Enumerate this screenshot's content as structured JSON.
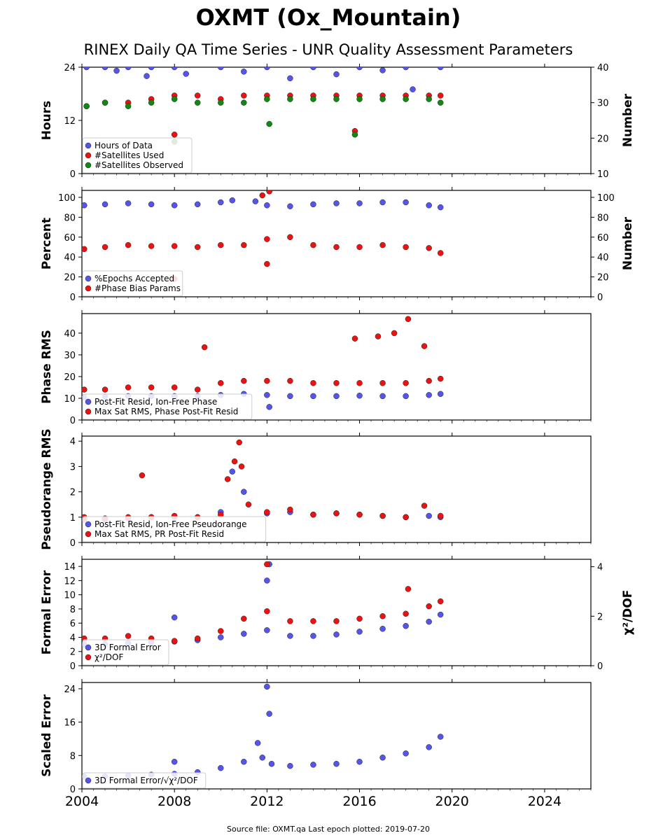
{
  "title": "OXMT (Ox_Mountain)",
  "subtitle": "RINEX Daily QA Time Series - UNR Quality Assessment Parameters",
  "footer": "Source file: OXMT.qa Last epoch plotted: 2019-07-20",
  "colors": {
    "blue": "#5555ee",
    "red": "#ee1111",
    "green": "#118811"
  },
  "chart_data": [
    {
      "type": "scatter",
      "id": "hours",
      "ylabel": "Hours",
      "ylabel2": "Number",
      "ylim": [
        0,
        24
      ],
      "yticks": [
        0,
        12,
        24
      ],
      "ylim2": [
        10,
        40
      ],
      "yticks2": [
        10,
        20,
        30,
        40
      ],
      "xlim": [
        2004,
        2026
      ],
      "xticks": [
        2004,
        2008,
        2012,
        2016,
        2020,
        2024
      ],
      "legend": "lower-left",
      "series": [
        {
          "name": "Hours of Data",
          "color": "blue",
          "axis": "left",
          "x": [
            2004.2,
            2005.0,
            2006.0,
            2007.0,
            2008.0,
            2010.0,
            2012.0,
            2014.0,
            2016.0,
            2018.0,
            2019.5,
            2005.5,
            2006.8,
            2008.5,
            2011.0,
            2013.0,
            2015.0,
            2017.0,
            2018.3
          ],
          "y": [
            24,
            24,
            24,
            24,
            24,
            24,
            24,
            24,
            24,
            24,
            24,
            23.2,
            22.0,
            22.5,
            23.0,
            21.5,
            22.4,
            23.3,
            19.0
          ]
        },
        {
          "name": "#Satellites Used",
          "color": "red",
          "axis": "right",
          "x": [
            2004.2,
            2005.0,
            2006.0,
            2007.0,
            2008.0,
            2009.0,
            2010.0,
            2011.0,
            2012.0,
            2013.0,
            2014.0,
            2015.0,
            2016.0,
            2017.0,
            2018.0,
            2019.0,
            2019.5,
            2008.0,
            2015.8
          ],
          "y": [
            29,
            30,
            30,
            31,
            32,
            32,
            31,
            32,
            32,
            32,
            32,
            32,
            32,
            32,
            32,
            32,
            32,
            21,
            22
          ]
        },
        {
          "name": "#Satellites Observed",
          "color": "green",
          "axis": "right",
          "x": [
            2004.2,
            2005.0,
            2006.0,
            2007.0,
            2008.0,
            2009.0,
            2010.0,
            2011.0,
            2012.0,
            2013.0,
            2014.0,
            2015.0,
            2016.0,
            2017.0,
            2018.0,
            2019.0,
            2019.5,
            2008.0,
            2012.1,
            2015.8
          ],
          "y": [
            29,
            30,
            29,
            30,
            31,
            30,
            30,
            30,
            31,
            31,
            31,
            31,
            31,
            31,
            31,
            31,
            30,
            19,
            24,
            21
          ]
        }
      ]
    },
    {
      "type": "scatter",
      "id": "percent",
      "ylabel": "Percent",
      "ylabel2": "Number",
      "ylim": [
        0,
        107
      ],
      "yticks": [
        0,
        20,
        40,
        60,
        80,
        100
      ],
      "ylim2": [
        0,
        107
      ],
      "yticks2": [
        0,
        20,
        40,
        60,
        80,
        100
      ],
      "xlim": [
        2004,
        2026
      ],
      "xticks": [
        2004,
        2008,
        2012,
        2016,
        2020,
        2024
      ],
      "legend": "lower-left",
      "series": [
        {
          "name": "%Epochs Accepted",
          "color": "blue",
          "axis": "left",
          "x": [
            2004.1,
            2005.0,
            2006.0,
            2007.0,
            2008.0,
            2009.0,
            2010.0,
            2010.5,
            2011.5,
            2012.0,
            2013.0,
            2014.0,
            2015.0,
            2016.0,
            2017.0,
            2018.0,
            2019.0,
            2019.5
          ],
          "y": [
            92,
            93,
            94,
            93,
            92,
            93,
            95,
            97,
            96,
            92,
            91,
            93,
            94,
            94,
            95,
            95,
            92,
            90
          ]
        },
        {
          "name": "#Phase Bias Params",
          "color": "red",
          "axis": "right",
          "x": [
            2004.1,
            2005.0,
            2006.0,
            2007.0,
            2008.0,
            2009.0,
            2010.0,
            2011.0,
            2012.0,
            2013.0,
            2014.0,
            2015.0,
            2016.0,
            2017.0,
            2018.0,
            2019.0,
            2019.5,
            2011.8,
            2012.1,
            2008.0,
            2012.0
          ],
          "y": [
            48,
            50,
            52,
            51,
            51,
            50,
            52,
            52,
            58,
            60,
            52,
            50,
            50,
            52,
            50,
            49,
            44,
            102,
            106,
            18,
            33
          ]
        }
      ]
    },
    {
      "type": "scatter",
      "id": "phase",
      "ylabel": "Phase RMS",
      "ylim": [
        0,
        49
      ],
      "yticks": [
        0,
        10,
        20,
        30,
        40
      ],
      "xlim": [
        2004,
        2026
      ],
      "xticks": [
        2004,
        2008,
        2012,
        2016,
        2020,
        2024
      ],
      "legend": "lower-left",
      "series": [
        {
          "name": "Post-Fit Resid, Ion-Free Phase",
          "color": "blue",
          "x": [
            2004.1,
            2005.0,
            2006.0,
            2007.0,
            2008.0,
            2009.0,
            2010.0,
            2011.0,
            2012.0,
            2013.0,
            2014.0,
            2015.0,
            2016.0,
            2017.0,
            2018.0,
            2019.0,
            2019.5,
            2012.1
          ],
          "y": [
            10.5,
            10.8,
            11.0,
            11.0,
            11.0,
            11.0,
            11.5,
            12.0,
            11.5,
            11.0,
            11.0,
            11.0,
            11.2,
            11.0,
            11.0,
            11.5,
            12.0,
            6.0
          ]
        },
        {
          "name": "Max Sat RMS, Phase Post-Fit Resid",
          "color": "red",
          "x": [
            2004.1,
            2005.0,
            2006.0,
            2007.0,
            2008.0,
            2009.0,
            2010.0,
            2011.0,
            2012.0,
            2013.0,
            2014.0,
            2015.0,
            2016.0,
            2017.0,
            2018.0,
            2019.0,
            2019.5,
            2018.1,
            2017.5,
            2016.8,
            2015.8,
            2009.3,
            2018.8
          ],
          "y": [
            14,
            14,
            15,
            15,
            15,
            14,
            17,
            18,
            18,
            18,
            17,
            17,
            17,
            17,
            17,
            18,
            19,
            46.5,
            40,
            38.5,
            37.5,
            33.5,
            34
          ]
        }
      ]
    },
    {
      "type": "scatter",
      "id": "pseudorange",
      "ylabel": "Pseudorange RMS",
      "ylim": [
        0,
        4.2
      ],
      "yticks": [
        0,
        1,
        2,
        3,
        4
      ],
      "xlim": [
        2004,
        2026
      ],
      "xticks": [
        2004,
        2008,
        2012,
        2016,
        2020,
        2024
      ],
      "legend": "lower-left",
      "series": [
        {
          "name": "Post-Fit Resid, Ion-Free Pseudorange",
          "color": "blue",
          "x": [
            2004.1,
            2005.0,
            2006.0,
            2007.0,
            2008.0,
            2009.0,
            2010.0,
            2010.5,
            2011.0,
            2012.0,
            2013.0,
            2014.0,
            2015.0,
            2016.0,
            2017.0,
            2018.0,
            2019.0,
            2019.5
          ],
          "y": [
            0.9,
            0.9,
            0.95,
            1.0,
            1.0,
            1.0,
            1.2,
            2.8,
            2.0,
            1.15,
            1.2,
            1.1,
            1.15,
            1.1,
            1.05,
            1.0,
            1.05,
            1.0
          ]
        },
        {
          "name": "Max Sat RMS, PR Post-Fit Resid",
          "color": "red",
          "x": [
            2004.1,
            2005.0,
            2006.0,
            2007.0,
            2008.0,
            2009.0,
            2010.0,
            2010.3,
            2010.6,
            2010.9,
            2011.2,
            2012.0,
            2013.0,
            2014.0,
            2015.0,
            2016.0,
            2017.0,
            2018.0,
            2018.8,
            2019.5,
            2006.6,
            2010.8
          ],
          "y": [
            1.0,
            0.95,
            1.0,
            1.0,
            1.05,
            1.0,
            1.1,
            2.5,
            3.2,
            3.0,
            1.5,
            1.2,
            1.3,
            1.1,
            1.15,
            1.1,
            1.05,
            1.0,
            1.45,
            1.05,
            2.65,
            3.95
          ]
        }
      ]
    },
    {
      "type": "scatter",
      "id": "formal",
      "ylabel": "Formal Error",
      "ylabel2": "χ²/DOF",
      "ylim": [
        0,
        15
      ],
      "yticks": [
        0,
        2,
        4,
        6,
        8,
        10,
        12,
        14
      ],
      "ylim2": [
        0,
        4.3
      ],
      "yticks2": [
        0,
        2,
        4
      ],
      "xlim": [
        2004,
        2026
      ],
      "xticks": [
        2004,
        2008,
        2012,
        2016,
        2020,
        2024
      ],
      "legend": "lower-left",
      "series": [
        {
          "name": "3D Formal Error",
          "color": "blue",
          "axis": "left",
          "x": [
            2004.1,
            2005.0,
            2006.0,
            2007.0,
            2008.0,
            2009.0,
            2010.0,
            2011.0,
            2012.0,
            2013.0,
            2014.0,
            2015.0,
            2016.0,
            2017.0,
            2018.0,
            2019.0,
            2019.5,
            2012.1,
            2012.0,
            2008.0
          ],
          "y": [
            3.0,
            3.0,
            3.2,
            3.3,
            3.4,
            3.6,
            4.0,
            4.5,
            5.0,
            4.2,
            4.2,
            4.4,
            4.8,
            5.2,
            5.6,
            6.2,
            7.2,
            14.3,
            12.0,
            6.8
          ]
        },
        {
          "name": "χ²/DOF",
          "color": "red",
          "axis": "right",
          "x": [
            2004.1,
            2005.0,
            2006.0,
            2007.0,
            2008.0,
            2009.0,
            2010.0,
            2011.0,
            2012.0,
            2013.0,
            2014.0,
            2015.0,
            2016.0,
            2017.0,
            2018.0,
            2019.0,
            2019.5,
            2012.0,
            2018.1
          ],
          "y": [
            1.1,
            1.1,
            1.2,
            1.1,
            1.0,
            1.1,
            1.4,
            1.9,
            2.2,
            1.8,
            1.8,
            1.8,
            1.9,
            2.0,
            2.1,
            2.4,
            2.6,
            4.1,
            3.1
          ]
        }
      ]
    },
    {
      "type": "scatter",
      "id": "scaled",
      "ylabel": "Scaled Error",
      "ylim": [
        0,
        25.5
      ],
      "yticks": [
        0,
        8,
        16,
        24
      ],
      "xlim": [
        2004,
        2026
      ],
      "xticks": [
        2004,
        2008,
        2012,
        2016,
        2020,
        2024
      ],
      "legend": "lower-left",
      "series": [
        {
          "name": "3D Formal Error/√χ²/DOF",
          "color": "blue",
          "x": [
            2004.1,
            2005.0,
            2006.0,
            2007.0,
            2008.0,
            2009.0,
            2010.0,
            2011.0,
            2011.8,
            2012.2,
            2013.0,
            2014.0,
            2015.0,
            2016.0,
            2017.0,
            2018.0,
            2019.0,
            2019.5,
            2012.0,
            2012.1,
            2008.0,
            2011.6
          ],
          "y": [
            3.0,
            3.0,
            3.2,
            3.4,
            3.6,
            4.0,
            5.0,
            6.5,
            7.5,
            6.0,
            5.5,
            5.8,
            6.0,
            6.5,
            7.5,
            8.5,
            10.0,
            12.5,
            24.5,
            18.0,
            6.5,
            11.0
          ]
        }
      ]
    }
  ]
}
